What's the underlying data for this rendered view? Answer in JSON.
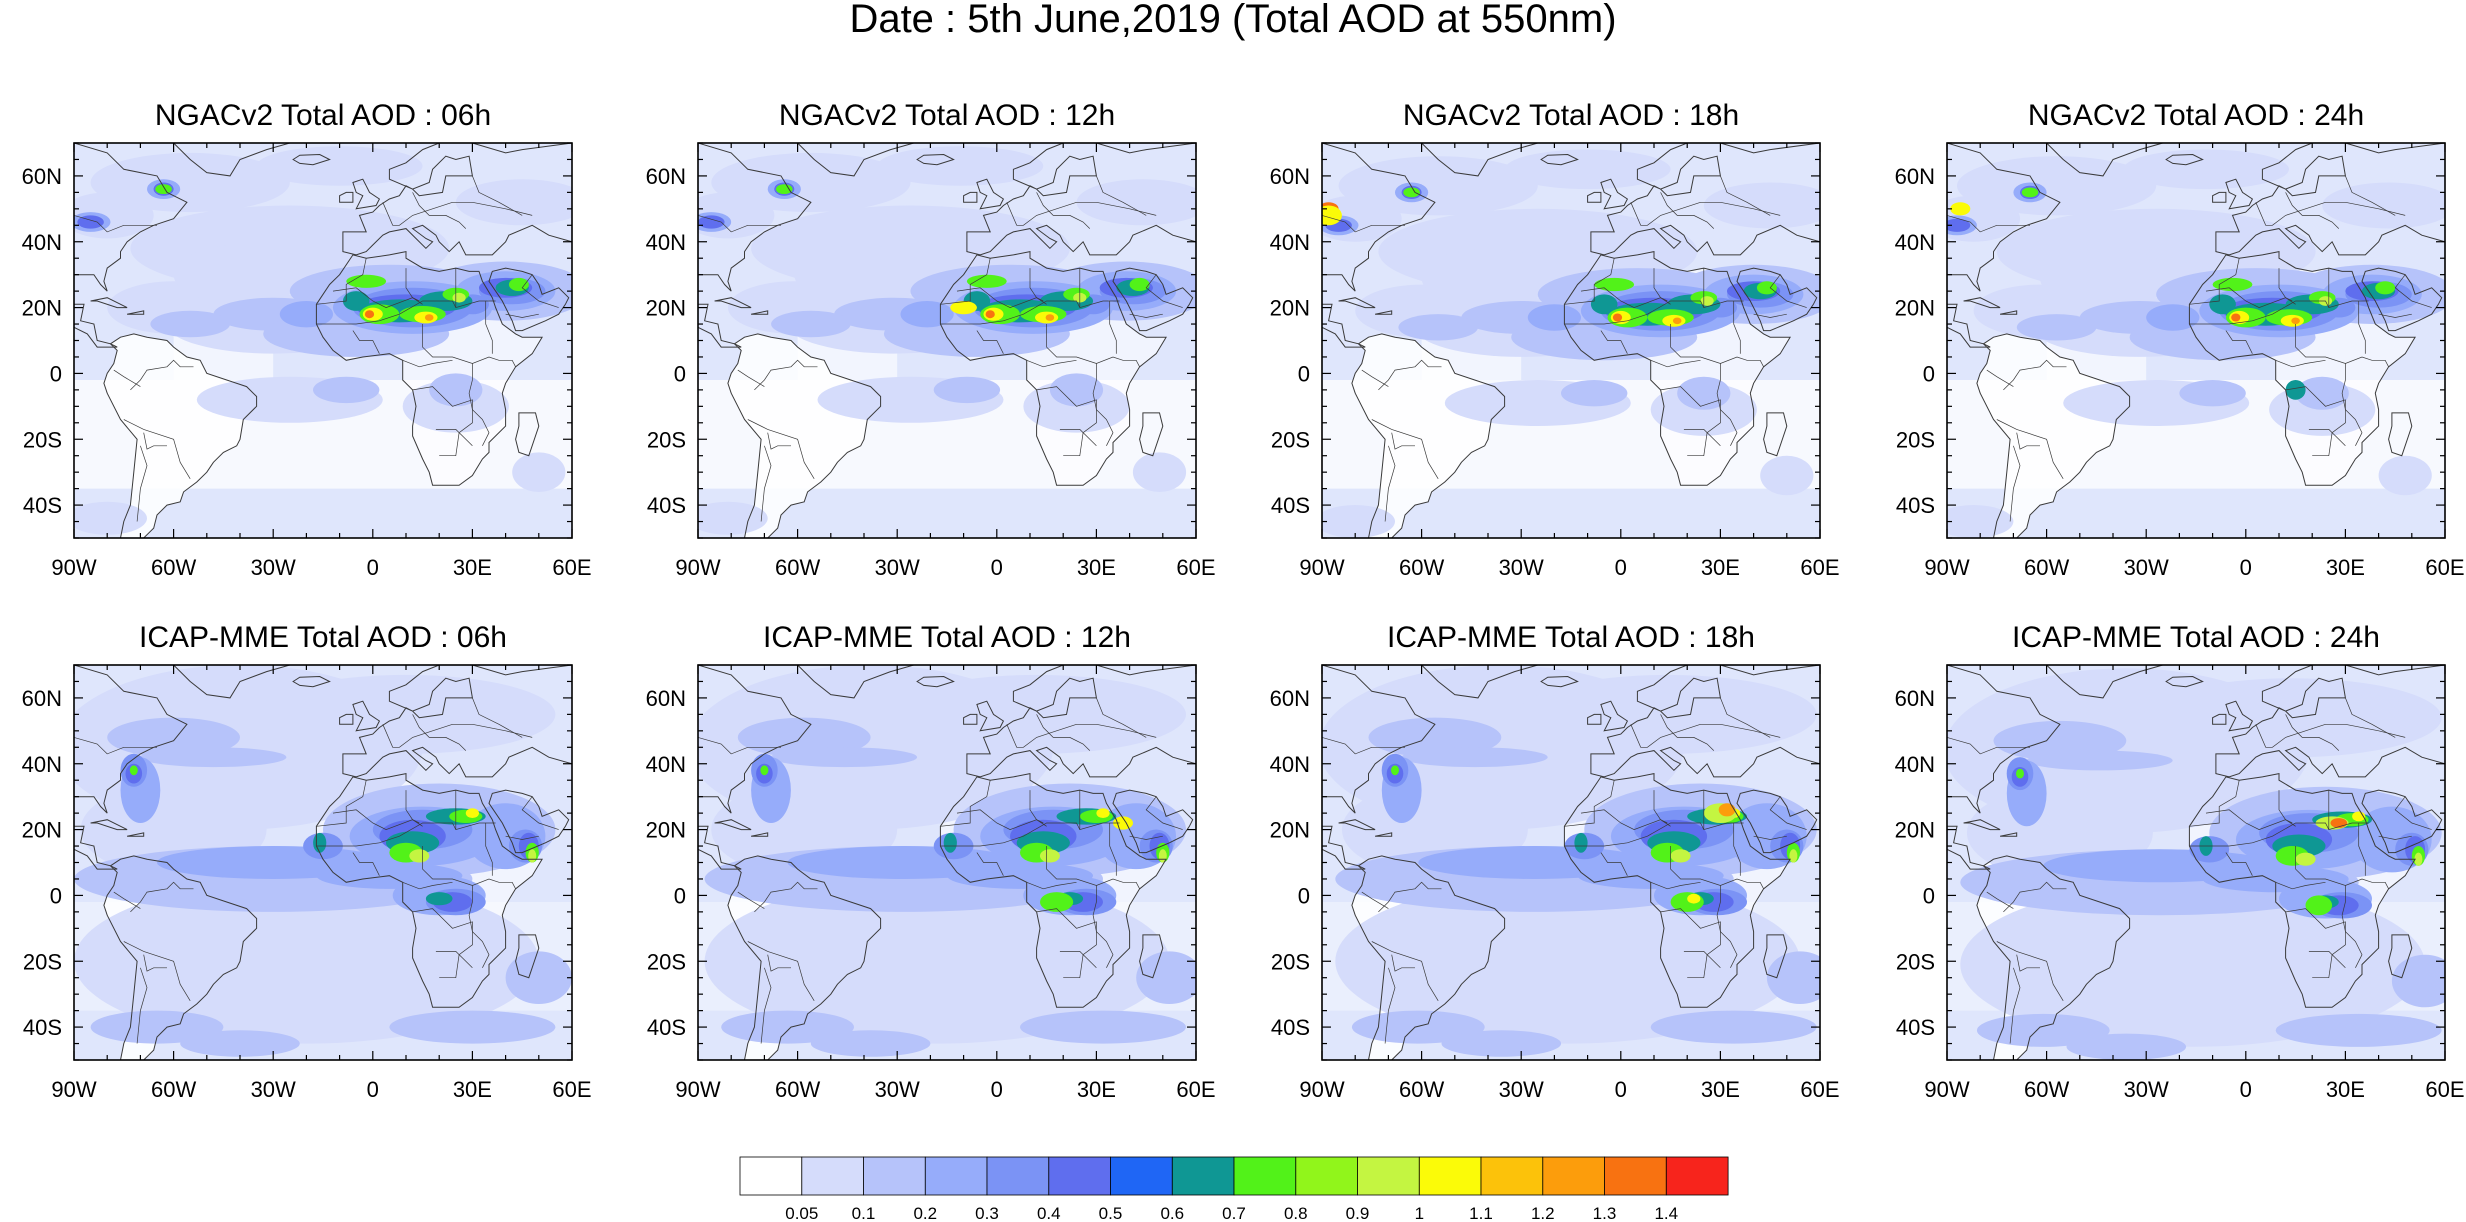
{
  "figure": {
    "title": "Date : 5th June,2019 (Total AOD at 550nm)"
  },
  "axes": {
    "lat_range": [
      -50,
      70
    ],
    "lon_range": [
      -90,
      60
    ],
    "lat_ticks": [
      {
        "value": 60,
        "label": "60N"
      },
      {
        "value": 40,
        "label": "40N"
      },
      {
        "value": 20,
        "label": "20N"
      },
      {
        "value": 0,
        "label": "0"
      },
      {
        "value": -20,
        "label": "20S"
      },
      {
        "value": -40,
        "label": "40S"
      }
    ],
    "lon_ticks": [
      {
        "value": -90,
        "label": "90W"
      },
      {
        "value": -60,
        "label": "60W"
      },
      {
        "value": -30,
        "label": "30W"
      },
      {
        "value": 0,
        "label": "0"
      },
      {
        "value": 30,
        "label": "30E"
      },
      {
        "value": 60,
        "label": "60E"
      }
    ]
  },
  "panels": [
    {
      "title": "NGACv2 Total AOD : 06h",
      "model": "NGACv2",
      "lead": "06h"
    },
    {
      "title": "NGACv2 Total AOD : 12h",
      "model": "NGACv2",
      "lead": "12h"
    },
    {
      "title": "NGACv2 Total AOD : 18h",
      "model": "NGACv2",
      "lead": "18h"
    },
    {
      "title": "NGACv2 Total AOD : 24h",
      "model": "NGACv2",
      "lead": "24h"
    },
    {
      "title": "ICAP-MME Total AOD : 06h",
      "model": "ICAP-MME",
      "lead": "06h"
    },
    {
      "title": "ICAP-MME Total AOD : 12h",
      "model": "ICAP-MME",
      "lead": "12h"
    },
    {
      "title": "ICAP-MME Total AOD : 18h",
      "model": "ICAP-MME",
      "lead": "18h"
    },
    {
      "title": "ICAP-MME Total AOD : 24h",
      "model": "ICAP-MME",
      "lead": "24h"
    }
  ],
  "colorbar": {
    "levels": [
      "0.05",
      "0.1",
      "0.2",
      "0.3",
      "0.4",
      "0.5",
      "0.6",
      "0.7",
      "0.8",
      "0.9",
      "1",
      "1.1",
      "1.2",
      "1.3",
      "1.4"
    ],
    "colors": [
      "#ffffff",
      "#d5dcfb",
      "#b6c3fa",
      "#96acfa",
      "#7b93f5",
      "#5f6eee",
      "#1f66f5",
      "#0f9794",
      "#52f219",
      "#91f51b",
      "#c4f541",
      "#fbfb08",
      "#fcc20a",
      "#fc9d0c",
      "#f87211",
      "#f7241c"
    ]
  },
  "map_style": {
    "ocean_tint": "#dfe6fc",
    "land_line": "#3a3a3a"
  }
}
